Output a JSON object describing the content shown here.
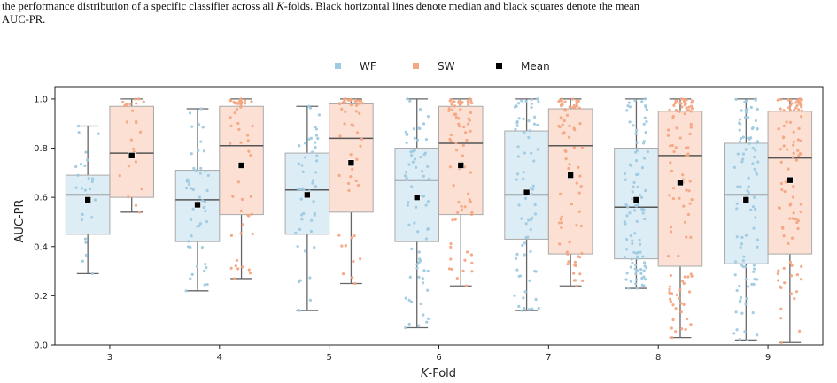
{
  "caption": {
    "part1": "the performance distribution of a specific classifier across all ",
    "k_symbol": "K",
    "part2": "-folds. Black horizontal lines denote median and black squares denote the mean",
    "line2": "AUC-PR."
  },
  "colors": {
    "WF": "#9ecae1",
    "SW": "#f4a582",
    "mean": "#000000",
    "median": "#555555"
  },
  "chart_data": {
    "type": "box",
    "xlabel_italic": "K",
    "xlabel_rest": "-Fold",
    "ylabel": "AUC-PR",
    "ylim": [
      0.0,
      1.05
    ],
    "yticks": [
      "0.0",
      "0.2",
      "0.4",
      "0.6",
      "0.8",
      "1.0"
    ],
    "categories": [
      "3",
      "4",
      "5",
      "6",
      "7",
      "8",
      "9"
    ],
    "legend": {
      "placement": "top-center",
      "items": [
        "WF",
        "SW",
        "Mean"
      ]
    },
    "series": [
      {
        "name": "WF",
        "color": "#9ecae1",
        "n_points": [
          25,
          50,
          50,
          75,
          75,
          100,
          100
        ],
        "boxes": [
          {
            "min": 0.29,
            "q1": 0.45,
            "median": 0.61,
            "q3": 0.69,
            "max": 0.89,
            "mean": 0.59
          },
          {
            "min": 0.22,
            "q1": 0.42,
            "median": 0.59,
            "q3": 0.71,
            "max": 0.96,
            "mean": 0.57
          },
          {
            "min": 0.14,
            "q1": 0.45,
            "median": 0.63,
            "q3": 0.78,
            "max": 0.97,
            "mean": 0.61
          },
          {
            "min": 0.07,
            "q1": 0.42,
            "median": 0.67,
            "q3": 0.8,
            "max": 1.0,
            "mean": 0.6
          },
          {
            "min": 0.14,
            "q1": 0.43,
            "median": 0.61,
            "q3": 0.87,
            "max": 1.0,
            "mean": 0.62
          },
          {
            "min": 0.23,
            "q1": 0.35,
            "median": 0.56,
            "q3": 0.8,
            "max": 1.0,
            "mean": 0.59
          },
          {
            "min": 0.02,
            "q1": 0.33,
            "median": 0.61,
            "q3": 0.82,
            "max": 1.0,
            "mean": 0.59
          }
        ]
      },
      {
        "name": "SW",
        "color": "#f4a582",
        "n_points": [
          25,
          50,
          50,
          75,
          75,
          100,
          100
        ],
        "boxes": [
          {
            "min": 0.54,
            "q1": 0.6,
            "median": 0.78,
            "q3": 0.97,
            "max": 1.0,
            "mean": 0.77
          },
          {
            "min": 0.27,
            "q1": 0.53,
            "median": 0.81,
            "q3": 0.97,
            "max": 1.0,
            "mean": 0.73
          },
          {
            "min": 0.25,
            "q1": 0.54,
            "median": 0.84,
            "q3": 0.98,
            "max": 1.0,
            "mean": 0.74
          },
          {
            "min": 0.24,
            "q1": 0.53,
            "median": 0.82,
            "q3": 0.97,
            "max": 1.0,
            "mean": 0.73
          },
          {
            "min": 0.24,
            "q1": 0.37,
            "median": 0.81,
            "q3": 0.96,
            "max": 1.0,
            "mean": 0.69
          },
          {
            "min": 0.03,
            "q1": 0.32,
            "median": 0.77,
            "q3": 0.95,
            "max": 1.0,
            "mean": 0.66
          },
          {
            "min": 0.01,
            "q1": 0.37,
            "median": 0.76,
            "q3": 0.95,
            "max": 1.0,
            "mean": 0.67
          }
        ]
      }
    ]
  }
}
